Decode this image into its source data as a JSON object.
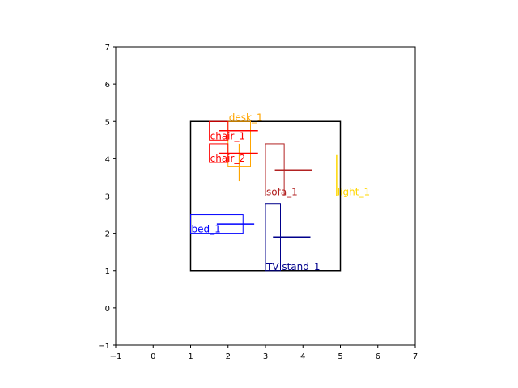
{
  "chart_data": {
    "type": "floor-plan",
    "xlim": [
      -1,
      7
    ],
    "ylim": [
      -1,
      7
    ],
    "x_ticks": [
      -1,
      0,
      1,
      2,
      3,
      4,
      5,
      6,
      7
    ],
    "y_ticks": [
      -1,
      0,
      1,
      2,
      3,
      4,
      5,
      6,
      7
    ],
    "grid": false,
    "room": {
      "x": [
        1,
        5
      ],
      "y": [
        1,
        5
      ],
      "color": "#000000"
    },
    "objects": [
      {
        "name": "desk_1",
        "color": "#ffa500",
        "rect": {
          "x": [
            2.0,
            2.6
          ],
          "y": [
            3.8,
            5.0
          ]
        },
        "dir": {
          "x": [
            2.3,
            2.3
          ],
          "y": [
            3.4,
            4.4
          ]
        },
        "label_pos": [
          2.0,
          5.0
        ]
      },
      {
        "name": "chair_1",
        "color": "#ff0000",
        "rect": {
          "x": [
            1.5,
            2.0
          ],
          "y": [
            4.5,
            5.0
          ]
        },
        "dir": {
          "x": [
            1.75,
            2.8
          ],
          "y": [
            4.75,
            4.75
          ]
        },
        "label_pos": [
          1.5,
          4.5
        ]
      },
      {
        "name": "chair_2",
        "color": "#ff0000",
        "rect": {
          "x": [
            1.5,
            2.0
          ],
          "y": [
            3.9,
            4.4
          ]
        },
        "dir": {
          "x": [
            1.75,
            2.8
          ],
          "y": [
            4.15,
            4.15
          ]
        },
        "label_pos": [
          1.5,
          3.9
        ]
      },
      {
        "name": "sofa_1",
        "color": "#b22222",
        "rect": {
          "x": [
            3.0,
            3.5
          ],
          "y": [
            3.0,
            4.4
          ]
        },
        "dir": {
          "x": [
            3.25,
            4.25
          ],
          "y": [
            3.7,
            3.7
          ]
        },
        "label_pos": [
          3.0,
          3.0
        ]
      },
      {
        "name": "light_1",
        "color": "#ffd700",
        "rect": {
          "x": [
            4.9,
            4.9
          ],
          "y": [
            3.0,
            4.1
          ]
        },
        "dir": {
          "x": [
            4.9,
            4.9
          ],
          "y": [
            3.0,
            4.1
          ]
        },
        "label_pos": [
          4.9,
          3.0
        ]
      },
      {
        "name": "bed_1",
        "color": "#0000ff",
        "rect": {
          "x": [
            1.0,
            2.4
          ],
          "y": [
            2.0,
            2.5
          ]
        },
        "dir": {
          "x": [
            1.7,
            2.7
          ],
          "y": [
            2.25,
            2.25
          ]
        },
        "label_pos": [
          1.0,
          2.0
        ]
      },
      {
        "name": "TV stand_1",
        "color": "#00008b",
        "rect": {
          "x": [
            3.0,
            3.4
          ],
          "y": [
            1.0,
            2.8
          ]
        },
        "dir": {
          "x": [
            3.2,
            4.2
          ],
          "y": [
            1.9,
            1.9
          ]
        },
        "label_pos": [
          3.0,
          1.0
        ]
      }
    ]
  }
}
